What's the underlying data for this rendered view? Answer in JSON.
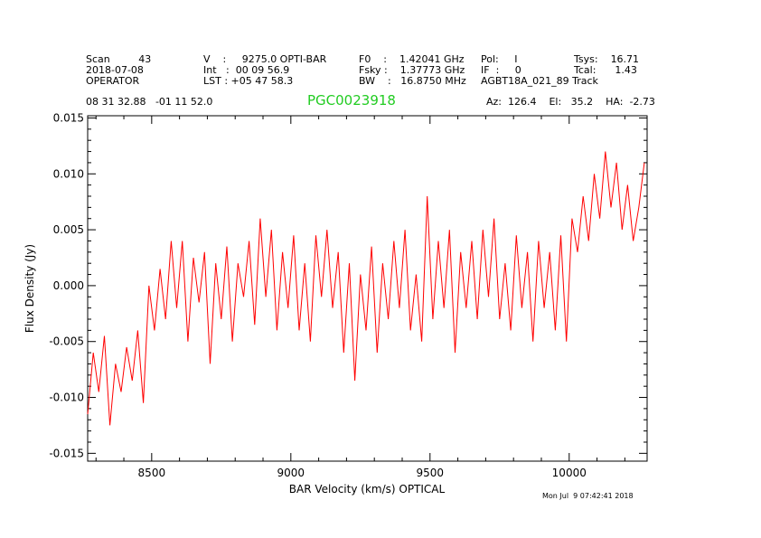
{
  "header": {
    "row1": [
      {
        "id": "scan",
        "text": "Scan         43"
      },
      {
        "id": "velocity",
        "text": "V    :     9275.0 OPTI-BAR"
      },
      {
        "id": "f0",
        "text": "F0    :    1.42041 GHz"
      },
      {
        "id": "pol",
        "text": "Pol:     I"
      },
      {
        "id": "tsys",
        "text": "Tsys:    16.71"
      }
    ],
    "row2": [
      {
        "id": "date",
        "text": "2018-07-08"
      },
      {
        "id": "int",
        "text": "Int   :  00 09 56.9"
      },
      {
        "id": "fsky",
        "text": "Fsky :    1.37773 GHz"
      },
      {
        "id": "if",
        "text": "IF  :     0"
      },
      {
        "id": "tcal",
        "text": "Tcal:      1.43"
      }
    ],
    "row3": [
      {
        "id": "operator",
        "text": "OPERATOR"
      },
      {
        "id": "lst",
        "text": "LST : +05 47 58.3"
      },
      {
        "id": "bw",
        "text": "BW    :   16.8750 MHz"
      },
      {
        "id": "project",
        "text": "AGBT18A_021_89 Track"
      }
    ],
    "coords": "08 31 32.88   -01 11 52.0",
    "source_name": "PGC0023918",
    "pointing": "Az:  126.4    El:   35.2    HA:  -2.73"
  },
  "timestamp": "Mon Jul  9 07:42:41 2018",
  "colors": {
    "trace": "#ff0000",
    "source_name": "#22cc22",
    "axes": "#000000"
  },
  "chart_data": {
    "type": "line",
    "xlabel": "BAR Velocity (km/s) OPTICAL",
    "ylabel": "Flux Density (Jy)",
    "xlim": [
      8270,
      10280
    ],
    "ylim": [
      -0.0157,
      0.0152
    ],
    "xticks": [
      8500,
      9000,
      9500,
      10000
    ],
    "xtick_labels": [
      "8500",
      "9000",
      "9500",
      "10000"
    ],
    "yticks": [
      0.015,
      0.01,
      0.005,
      0.0,
      -0.005,
      -0.01,
      -0.015
    ],
    "ytick_labels": [
      "0.015",
      "0.010",
      "0.005",
      "0.000",
      "-0.005",
      "-0.010",
      "-0.015"
    ],
    "grid": false,
    "series": [
      {
        "x": [
          8270,
          8290,
          8310,
          8330,
          8350,
          8370,
          8390,
          8410,
          8430,
          8450,
          8470,
          8490,
          8510,
          8530,
          8550,
          8570,
          8590,
          8610,
          8630,
          8650,
          8670,
          8690,
          8710,
          8730,
          8750,
          8770,
          8790,
          8810,
          8830,
          8850,
          8870,
          8890,
          8910,
          8930,
          8950,
          8970,
          8990,
          9010,
          9030,
          9050,
          9070,
          9090,
          9110,
          9130,
          9150,
          9170,
          9190,
          9210,
          9230,
          9250,
          9270,
          9290,
          9310,
          9330,
          9350,
          9370,
          9390,
          9410,
          9430,
          9450,
          9470,
          9490,
          9510,
          9530,
          9550,
          9570,
          9590,
          9610,
          9630,
          9650,
          9670,
          9690,
          9710,
          9730,
          9750,
          9770,
          9790,
          9810,
          9830,
          9850,
          9870,
          9890,
          9910,
          9930,
          9950,
          9970,
          9990,
          10010,
          10030,
          10050,
          10070,
          10090,
          10110,
          10130,
          10150,
          10170,
          10190,
          10210,
          10230,
          10250,
          10270
        ],
        "y": [
          -0.0115,
          -0.006,
          -0.0095,
          -0.0045,
          -0.0125,
          -0.007,
          -0.0095,
          -0.0055,
          -0.0085,
          -0.004,
          -0.0105,
          0.0,
          -0.004,
          0.0015,
          -0.003,
          0.004,
          -0.002,
          0.004,
          -0.005,
          0.0025,
          -0.0015,
          0.003,
          -0.007,
          0.002,
          -0.003,
          0.0035,
          -0.005,
          0.002,
          -0.001,
          0.004,
          -0.0035,
          0.006,
          -0.001,
          0.005,
          -0.004,
          0.003,
          -0.002,
          0.0045,
          -0.004,
          0.002,
          -0.005,
          0.0045,
          -0.001,
          0.005,
          -0.002,
          0.003,
          -0.006,
          0.002,
          -0.0085,
          0.001,
          -0.004,
          0.0035,
          -0.006,
          0.002,
          -0.003,
          0.004,
          -0.002,
          0.005,
          -0.004,
          0.001,
          -0.005,
          0.008,
          -0.003,
          0.004,
          -0.002,
          0.005,
          -0.006,
          0.003,
          -0.002,
          0.004,
          -0.003,
          0.005,
          -0.001,
          0.006,
          -0.003,
          0.002,
          -0.004,
          0.0045,
          -0.002,
          0.003,
          -0.005,
          0.004,
          -0.002,
          0.003,
          -0.004,
          0.0045,
          -0.005,
          0.006,
          0.003,
          0.008,
          0.004,
          0.01,
          0.006,
          0.012,
          0.007,
          0.011,
          0.005,
          0.009,
          0.004,
          0.007,
          0.011
        ]
      }
    ]
  }
}
